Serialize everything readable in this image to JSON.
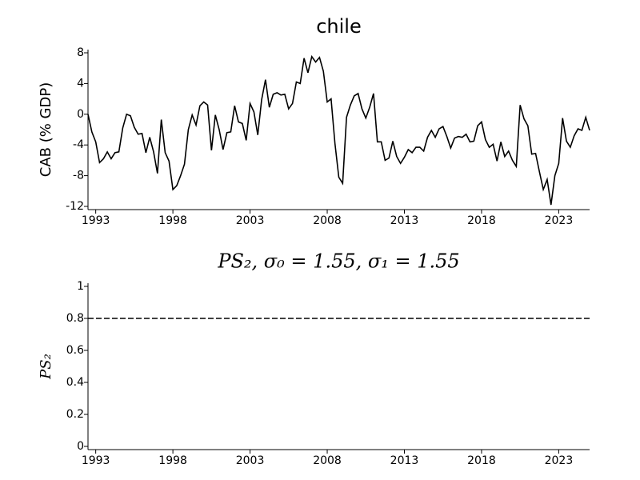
{
  "chart_data": [
    {
      "type": "line",
      "title": "chile",
      "ylabel": "CAB (% GDP)",
      "color": "#000000",
      "x": [
        1992.5,
        1992.75,
        1993,
        1993.25,
        1993.5,
        1993.75,
        1994,
        1994.25,
        1994.5,
        1994.75,
        1995,
        1995.25,
        1995.5,
        1995.75,
        1996,
        1996.25,
        1996.5,
        1996.75,
        1997,
        1997.25,
        1997.5,
        1997.75,
        1998,
        1998.25,
        1998.5,
        1998.75,
        1999,
        1999.25,
        1999.5,
        1999.75,
        2000,
        2000.25,
        2000.5,
        2000.75,
        2001,
        2001.25,
        2001.5,
        2001.75,
        2002,
        2002.25,
        2002.5,
        2002.75,
        2003,
        2003.25,
        2003.5,
        2003.75,
        2004,
        2004.25,
        2004.5,
        2004.75,
        2005,
        2005.25,
        2005.5,
        2005.75,
        2006,
        2006.25,
        2006.5,
        2006.75,
        2007,
        2007.25,
        2007.5,
        2007.75,
        2008,
        2008.25,
        2008.5,
        2008.75,
        2009,
        2009.25,
        2009.5,
        2009.75,
        2010,
        2010.25,
        2010.5,
        2010.75,
        2011,
        2011.25,
        2011.5,
        2011.75,
        2012,
        2012.25,
        2012.5,
        2012.75,
        2013,
        2013.25,
        2013.5,
        2013.75,
        2014,
        2014.25,
        2014.5,
        2014.75,
        2015,
        2015.25,
        2015.5,
        2015.75,
        2016,
        2016.25,
        2016.5,
        2016.75,
        2017,
        2017.25,
        2017.5,
        2017.75,
        2018,
        2018.25,
        2018.5,
        2018.75,
        2019,
        2019.25,
        2019.5,
        2019.75,
        2020,
        2020.25,
        2020.5,
        2020.75,
        2021,
        2021.25,
        2021.5,
        2021.75,
        2022,
        2022.25,
        2022.5,
        2022.75,
        2023,
        2023.25,
        2023.5,
        2023.75,
        2024,
        2024.25,
        2024.5,
        2024.75,
        2025
      ],
      "values": [
        0,
        -2.3,
        -3.6,
        -6.3,
        -5.8,
        -4.9,
        -5.8,
        -5.0,
        -4.9,
        -1.8,
        0,
        -0.2,
        -1.7,
        -2.6,
        -2.5,
        -5.0,
        -3.0,
        -4.9,
        -7.7,
        -0.7,
        -5.0,
        -6.1,
        -9.8,
        -9.3,
        -8.0,
        -6.5,
        -2.0,
        -0.1,
        -1.4,
        1.1,
        1.6,
        1.2,
        -4.7,
        -0.1,
        -2.0,
        -4.6,
        -2.4,
        -2.3,
        1.1,
        -1.0,
        -1.2,
        -3.4,
        1.4,
        0.3,
        -2.7,
        1.9,
        4.5,
        0.9,
        2.6,
        2.8,
        2.5,
        2.6,
        0.7,
        1.4,
        4.2,
        4.0,
        7.3,
        5.4,
        7.5,
        6.8,
        7.4,
        5.6,
        1.6,
        2.0,
        -3.8,
        -8.2,
        -9.0,
        -0.4,
        1.2,
        2.4,
        2.7,
        0.7,
        -0.5,
        0.9,
        2.7,
        -3.6,
        -3.6,
        -6.0,
        -5.7,
        -3.5,
        -5.5,
        -6.4,
        -5.6,
        -4.6,
        -5.0,
        -4.3,
        -4.3,
        -4.8,
        -3.0,
        -2.1,
        -3.0,
        -1.9,
        -1.6,
        -2.9,
        -4.4,
        -3.1,
        -2.9,
        -3.0,
        -2.6,
        -3.6,
        -3.5,
        -1.5,
        -1.0,
        -3.3,
        -4.3,
        -3.9,
        -6.1,
        -3.6,
        -5.5,
        -4.8,
        -6.0,
        -6.8,
        1.2,
        -0.6,
        -1.5,
        -5.2,
        -5.1,
        -7.5,
        -9.8,
        -8.5,
        -11.8,
        -8.0,
        -6.4,
        -0.5,
        -3.5,
        -4.3,
        -2.8,
        -1.9,
        -2.1,
        -0.4,
        -2.1
      ],
      "xlim": [
        1992.5,
        2025
      ],
      "xticks": [
        1993,
        1998,
        2003,
        2008,
        2013,
        2018,
        2023
      ],
      "ylim": [
        -12,
        8
      ],
      "yticks": [
        -12,
        -8,
        -4,
        0,
        4,
        8
      ]
    },
    {
      "type": "line",
      "title": "PS₂, σ₀ = 1.55, σ₁ = 1.55",
      "ylabel": "PS₂",
      "color": "#000000",
      "dashed": true,
      "x": [
        1992.5,
        2025
      ],
      "values": [
        0.8,
        0.8
      ],
      "xlim": [
        1992.5,
        2025
      ],
      "xticks": [
        1993,
        1998,
        2003,
        2008,
        2013,
        2018,
        2023
      ],
      "ylim": [
        0,
        1
      ],
      "yticks": [
        0,
        0.2,
        0.4,
        0.6,
        0.8,
        1
      ]
    }
  ]
}
